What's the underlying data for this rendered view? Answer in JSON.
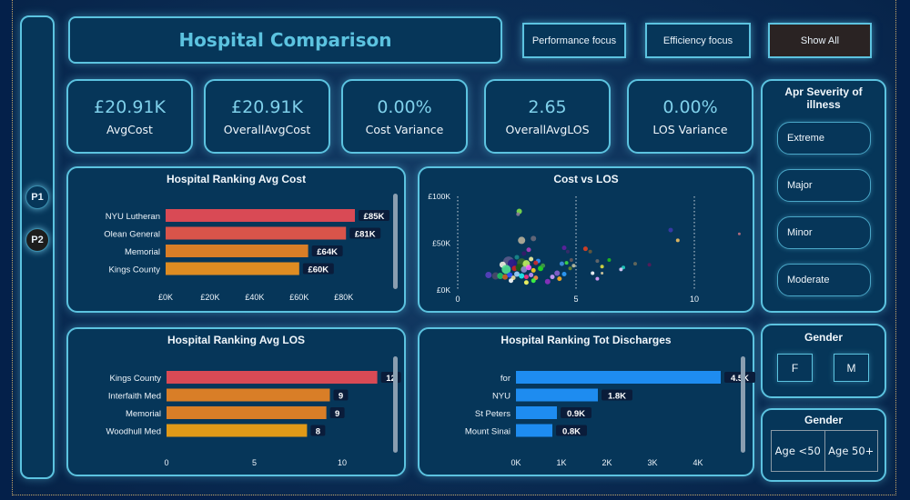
{
  "header": {
    "title": "Hospital Comparison",
    "buttons": {
      "performance": "Performance focus",
      "efficiency": "Efficiency focus",
      "show_all": "Show All"
    }
  },
  "nav": {
    "pages": [
      "P1",
      "P2"
    ],
    "active_page": "P2"
  },
  "kpis": [
    {
      "value": "£20.91K",
      "label": "AvgCost"
    },
    {
      "value": "£20.91K",
      "label": "OverallAvgCost"
    },
    {
      "value": "0.00%",
      "label": "Cost Variance"
    },
    {
      "value": "2.65",
      "label": "OverallAvgLOS"
    },
    {
      "value": "0.00%",
      "label": "LOS Variance"
    }
  ],
  "slicers": {
    "severity": {
      "title": "Apr Severity of illness",
      "items": [
        "Extreme",
        "Major",
        "Minor",
        "Moderate"
      ]
    },
    "gender": {
      "title": "Gender",
      "items": [
        "F",
        "M"
      ]
    },
    "age": {
      "title": "Gender",
      "items": [
        "Age <50",
        "Age 50+"
      ]
    }
  },
  "colors": {
    "accent": "#5cc3e0",
    "bar_red": "#d94a55",
    "bar_orange": "#d97e27",
    "bar_amber": "#e09a18",
    "bar_blue": "#1e8cf0",
    "label_bg": "#0a1c3a"
  },
  "chart_data": [
    {
      "type": "bar",
      "orientation": "horizontal",
      "title": "Hospital Ranking Avg Cost",
      "categories": [
        "NYU Lutheran",
        "Olean General",
        "Memorial",
        "Kings County"
      ],
      "values": [
        85,
        81,
        64,
        60
      ],
      "data_labels": [
        "£85K",
        "£81K",
        "£64K",
        "£60K"
      ],
      "bar_colors": [
        "#d94a55",
        "#d9544a",
        "#d97e27",
        "#de8c22"
      ],
      "xticks": [
        "£0K",
        "£20K",
        "£40K",
        "£60K",
        "£80K"
      ],
      "xtick_values": [
        0,
        20,
        40,
        60,
        80
      ],
      "xlim": [
        0,
        90
      ],
      "unit": "£K"
    },
    {
      "type": "scatter",
      "title": "Cost vs LOS",
      "xlabel": "",
      "ylabel": "",
      "xticks": [
        "0",
        "5",
        "10"
      ],
      "xtick_values": [
        0,
        5,
        10
      ],
      "yticks": [
        "£0K",
        "£50K",
        "£100K"
      ],
      "ytick_values": [
        0,
        50,
        100
      ],
      "xlim": [
        0,
        12.2
      ],
      "ylim": [
        0,
        100
      ],
      "grid": "vertical-dotted",
      "points": [
        {
          "x": 2.6,
          "y": 84,
          "c": "#7ee04a",
          "s": 3
        },
        {
          "x": 2.55,
          "y": 81,
          "c": "#8a7a9a",
          "s": 2
        },
        {
          "x": 2.7,
          "y": 53,
          "c": "#b8b09a",
          "s": 4
        },
        {
          "x": 3.2,
          "y": 55,
          "c": "#6a6a7a",
          "s": 3
        },
        {
          "x": 3.0,
          "y": 43,
          "c": "#b040c0",
          "s": 2.5
        },
        {
          "x": 2.8,
          "y": 39,
          "c": "#3a1a6a",
          "s": 2.5
        },
        {
          "x": 2.5,
          "y": 35,
          "c": "#1a8a8a",
          "s": 2.5
        },
        {
          "x": 3.1,
          "y": 33,
          "c": "#f0f0a0",
          "s": 2.5
        },
        {
          "x": 3.4,
          "y": 31,
          "c": "#3090ff",
          "s": 2.5
        },
        {
          "x": 2.15,
          "y": 30,
          "c": "#5a5a8a",
          "s": 6
        },
        {
          "x": 2.3,
          "y": 28,
          "c": "#2a1a8a",
          "s": 5
        },
        {
          "x": 2.7,
          "y": 29,
          "c": "#3a6a2a",
          "s": 5
        },
        {
          "x": 1.9,
          "y": 27,
          "c": "#f0f0e0",
          "s": 3.5
        },
        {
          "x": 2.9,
          "y": 28,
          "c": "#c0f060",
          "s": 4
        },
        {
          "x": 3.3,
          "y": 29,
          "c": "#d02a2a",
          "s": 2.5
        },
        {
          "x": 2.05,
          "y": 22,
          "c": "#50e090",
          "s": 5
        },
        {
          "x": 2.4,
          "y": 23,
          "c": "#d02020",
          "s": 3
        },
        {
          "x": 2.6,
          "y": 24,
          "c": "#1a5a1a",
          "s": 4
        },
        {
          "x": 2.8,
          "y": 22,
          "c": "#9090d0",
          "s": 3.5
        },
        {
          "x": 3.0,
          "y": 24,
          "c": "#ff60ff",
          "s": 3
        },
        {
          "x": 3.2,
          "y": 21,
          "c": "#ffd020",
          "s": 2.5
        },
        {
          "x": 3.5,
          "y": 23,
          "c": "#20e020",
          "s": 3
        },
        {
          "x": 3.6,
          "y": 26,
          "c": "#40a040",
          "s": 2.5
        },
        {
          "x": 1.3,
          "y": 16,
          "c": "#5a40c0",
          "s": 3.5
        },
        {
          "x": 1.6,
          "y": 15,
          "c": "#4a4a6a",
          "s": 4
        },
        {
          "x": 1.8,
          "y": 15,
          "c": "#20c060",
          "s": 3.5
        },
        {
          "x": 2.0,
          "y": 14,
          "c": "#d06020",
          "s": 3
        },
        {
          "x": 2.2,
          "y": 16,
          "c": "#3050ff",
          "s": 3
        },
        {
          "x": 2.35,
          "y": 13,
          "c": "#f0e0a0",
          "s": 2.5
        },
        {
          "x": 2.5,
          "y": 17,
          "c": "#a0d0ff",
          "s": 3
        },
        {
          "x": 2.7,
          "y": 15,
          "c": "#20f0f0",
          "s": 3
        },
        {
          "x": 2.9,
          "y": 14,
          "c": "#ff3080",
          "s": 2.5
        },
        {
          "x": 3.1,
          "y": 16,
          "c": "#c090ff",
          "s": 2.5
        },
        {
          "x": 3.3,
          "y": 13,
          "c": "#ff9040",
          "s": 2.5
        },
        {
          "x": 2.25,
          "y": 10,
          "c": "#ffffff",
          "s": 2.5
        },
        {
          "x": 2.9,
          "y": 8,
          "c": "#ffff60",
          "s": 2.5
        },
        {
          "x": 3.2,
          "y": 10,
          "c": "#40ff40",
          "s": 2.5
        },
        {
          "x": 3.8,
          "y": 9,
          "c": "#9030c0",
          "s": 3
        },
        {
          "x": 4.0,
          "y": 14,
          "c": "#d0a0ff",
          "s": 2.5
        },
        {
          "x": 4.2,
          "y": 18,
          "c": "#8a60d0",
          "s": 3
        },
        {
          "x": 4.3,
          "y": 12,
          "c": "#ffb020",
          "s": 2.5
        },
        {
          "x": 4.5,
          "y": 17,
          "c": "#30a0ff",
          "s": 2.5
        },
        {
          "x": 4.4,
          "y": 28,
          "c": "#4090e0",
          "s": 2.5
        },
        {
          "x": 4.6,
          "y": 29,
          "c": "#40e040",
          "s": 2
        },
        {
          "x": 4.8,
          "y": 32,
          "c": "#6a5a5a",
          "s": 2
        },
        {
          "x": 4.75,
          "y": 23,
          "c": "#6a8a2a",
          "s": 2
        },
        {
          "x": 4.9,
          "y": 26,
          "c": "#c0c0a0",
          "s": 2
        },
        {
          "x": 4.65,
          "y": 41,
          "c": "#3a2a6a",
          "s": 2
        },
        {
          "x": 4.5,
          "y": 45,
          "c": "#6020a0",
          "s": 2.5
        },
        {
          "x": 5.4,
          "y": 44,
          "c": "#e04020",
          "s": 2.5
        },
        {
          "x": 5.6,
          "y": 41,
          "c": "#6a5a3a",
          "s": 2
        },
        {
          "x": 5.9,
          "y": 31,
          "c": "#6a6a6a",
          "s": 2
        },
        {
          "x": 6.4,
          "y": 32,
          "c": "#20c020",
          "s": 2
        },
        {
          "x": 6.1,
          "y": 25,
          "c": "#e0e040",
          "s": 2
        },
        {
          "x": 6.1,
          "y": 18,
          "c": "#e0d0a0",
          "s": 1.5
        },
        {
          "x": 5.7,
          "y": 18,
          "c": "#ffffff",
          "s": 2
        },
        {
          "x": 5.9,
          "y": 12,
          "c": "#e0a0ff",
          "s": 2
        },
        {
          "x": 7.0,
          "y": 24,
          "c": "#20d0c0",
          "s": 2
        },
        {
          "x": 6.9,
          "y": 22,
          "c": "#e0d0ff",
          "s": 2
        },
        {
          "x": 7.5,
          "y": 28,
          "c": "#6a6a5a",
          "s": 2
        },
        {
          "x": 8.1,
          "y": 27,
          "c": "#5a1a5a",
          "s": 2
        },
        {
          "x": 9.0,
          "y": 64,
          "c": "#3a3aaa",
          "s": 2.5
        },
        {
          "x": 9.3,
          "y": 53,
          "c": "#f0c060",
          "s": 2
        },
        {
          "x": 11.9,
          "y": 60,
          "c": "#c07080",
          "s": 1.5
        }
      ]
    },
    {
      "type": "bar",
      "orientation": "horizontal",
      "title": "Hospital Ranking Avg LOS",
      "categories": [
        "Kings County",
        "Interfaith Med",
        "Memorial",
        "Woodhull Med"
      ],
      "values": [
        12,
        9.3,
        9.1,
        8
      ],
      "data_labels": [
        "12",
        "9",
        "9",
        "8"
      ],
      "bar_colors": [
        "#d94a55",
        "#d97e27",
        "#d97e27",
        "#e09a18"
      ],
      "xticks": [
        "0",
        "5",
        "10"
      ],
      "xtick_values": [
        0,
        5,
        10
      ],
      "xlim": [
        0,
        12.5
      ]
    },
    {
      "type": "bar",
      "orientation": "horizontal",
      "title": "Hospital Ranking Tot Discharges",
      "categories": [
        "for",
        "NYU",
        "St Peters",
        "Mount Sinai"
      ],
      "values": [
        4.5,
        1.8,
        0.9,
        0.8
      ],
      "data_labels": [
        "4.5K",
        "1.8K",
        "0.9K",
        "0.8K"
      ],
      "bar_colors": [
        "#1e8cf0",
        "#1e8cf0",
        "#1e8cf0",
        "#1e8cf0"
      ],
      "xticks": [
        "0K",
        "1K",
        "2K",
        "3K",
        "4K"
      ],
      "xtick_values": [
        0,
        1,
        2,
        3,
        4
      ],
      "xlim": [
        0,
        4.6
      ],
      "unit": "K"
    }
  ]
}
